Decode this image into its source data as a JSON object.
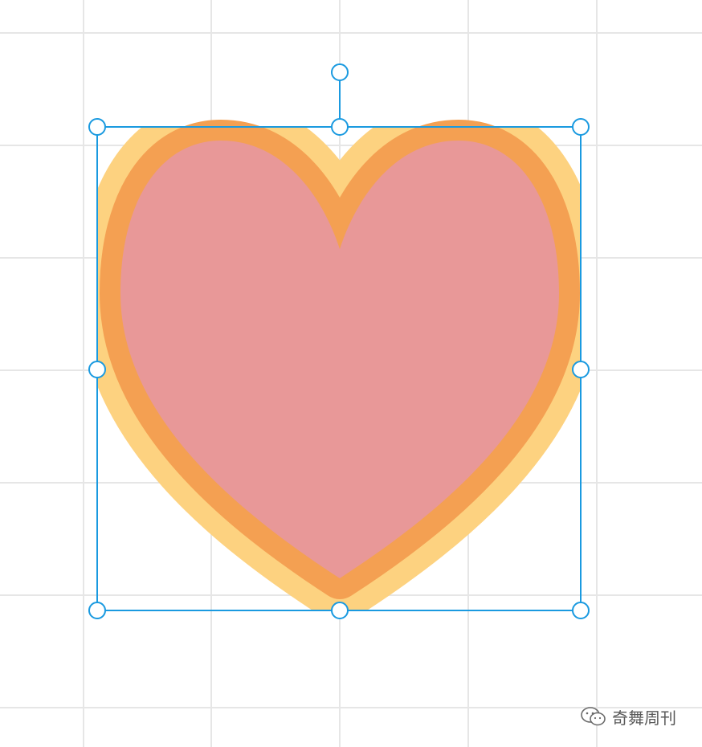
{
  "canvas": {
    "background": "#ffffff",
    "grid_color": "#e6e6e6"
  },
  "shape": {
    "name": "heart",
    "glow_color": "#fdd280",
    "stroke_color": "#f4a052",
    "fill_color": "#e89898"
  },
  "selection": {
    "color": "#1a9ae0",
    "handle_fill": "#ffffff"
  },
  "watermark": {
    "icon": "wechat-icon",
    "text": "奇舞周刊"
  }
}
